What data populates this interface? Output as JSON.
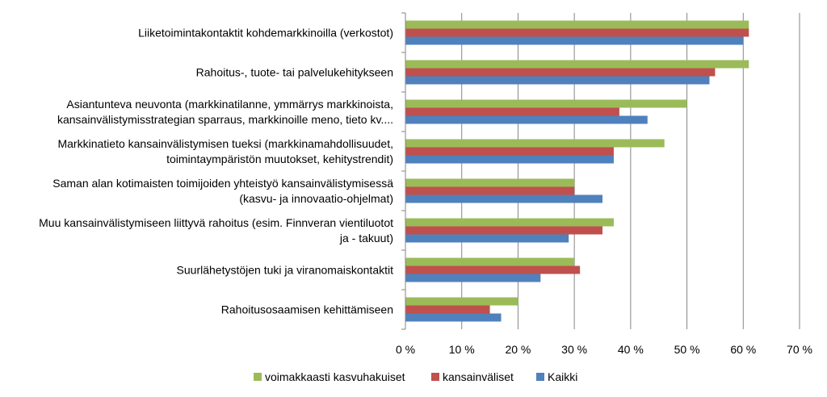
{
  "chart_data": {
    "type": "bar",
    "orientation": "horizontal",
    "categories": [
      [
        "Liiketoimintakontaktit kohdemarkkinoilla (verkostot)"
      ],
      [
        "Rahoitus-, tuote- tai palvelukehitykseen"
      ],
      [
        "Asiantunteva neuvonta (markkinatilanne, ymmärrys markkinoista,",
        "kansainvälistymisstrategian sparraus, markkinoille meno, tieto kv...."
      ],
      [
        "Markkinatieto kansainvälistymisen tueksi (markkinamahdollisuudet,",
        "toimintaympäristön muutokset, kehitystrendit)"
      ],
      [
        "Saman alan kotimaisten toimijoiden yhteistyö kansainvälistymisessä",
        "(kasvu- ja innovaatio-ohjelmat)"
      ],
      [
        "Muu kansainvälistymiseen liittyvä rahoitus (esim. Finnveran vientiluotot",
        "ja - takuut)"
      ],
      [
        "Suurlähetystöjen tuki ja viranomaiskontaktit"
      ],
      [
        "Rahoitusosaamisen kehittämiseen"
      ]
    ],
    "series": [
      {
        "name": "voimakkaasti kasvuhakuiset",
        "color": "#9BBB59",
        "values": [
          61,
          61,
          50,
          46,
          30,
          37,
          30,
          20
        ]
      },
      {
        "name": "kansainväliset",
        "color": "#C0504D",
        "values": [
          61,
          55,
          38,
          37,
          30,
          35,
          31,
          15
        ]
      },
      {
        "name": "Kaikki",
        "color": "#4F81BD",
        "values": [
          60,
          54,
          43,
          37,
          35,
          29,
          24,
          17
        ]
      }
    ],
    "xlim": [
      0,
      70
    ],
    "xticks": [
      0,
      10,
      20,
      30,
      40,
      50,
      60,
      70
    ],
    "tick_labels": [
      "0 %",
      "10 %",
      "20 %",
      "30 %",
      "40 %",
      "50 %",
      "60 %",
      "70 %"
    ],
    "grid": true,
    "legend_position": "bottom"
  }
}
